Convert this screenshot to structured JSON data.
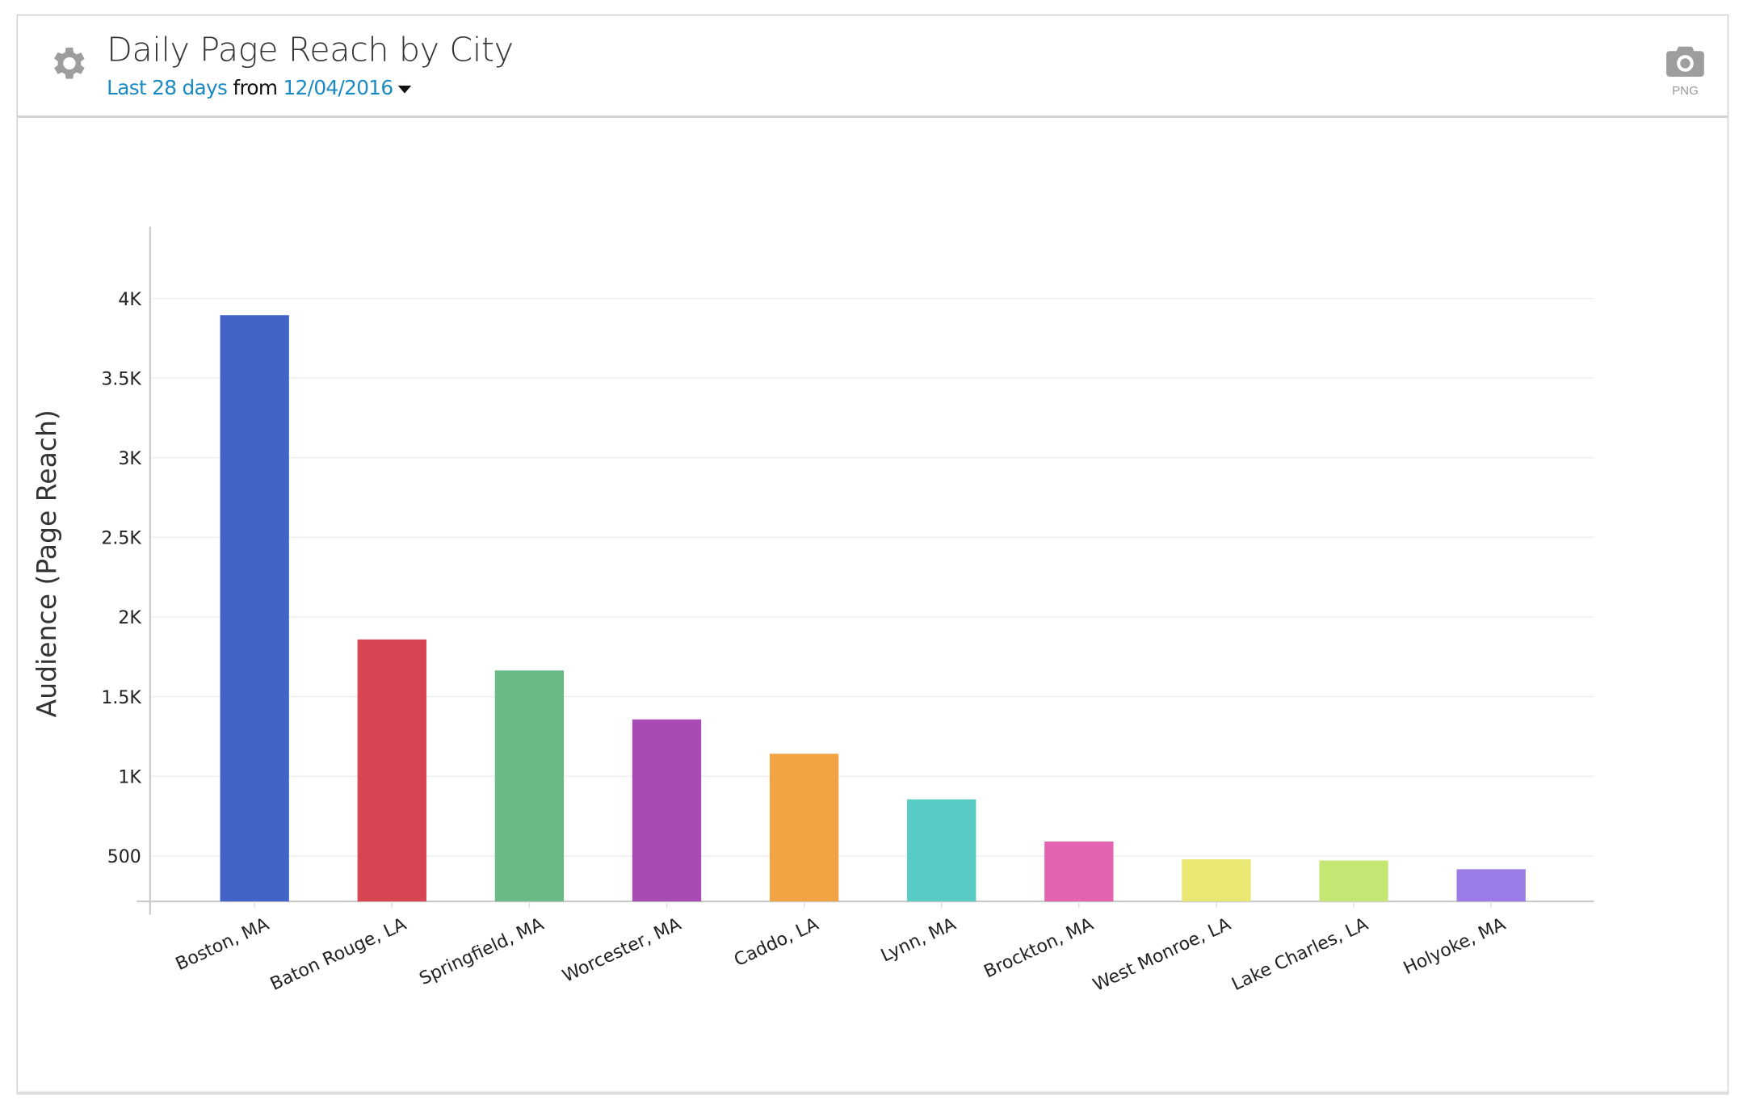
{
  "header": {
    "title": "Daily Page Reach by City",
    "range_label": "Last 28 days",
    "from_label": "from",
    "date_label": "12/04/2016",
    "export_label": "PNG"
  },
  "icons": {
    "settings": "gear-icon",
    "export": "camera-icon",
    "date_dropdown": "caret-down-icon"
  },
  "colors": {
    "link": "#1a8ac4",
    "icon": "#9e9e9e"
  },
  "chart_data": {
    "type": "bar",
    "title": "Daily Page Reach by City",
    "xlabel": "",
    "ylabel": "Audience (Page Reach)",
    "ylim": [
      214,
      4450
    ],
    "grid": true,
    "yticks": [
      500,
      1000,
      1500,
      2000,
      2500,
      3000,
      3500,
      4000
    ],
    "ytick_labels": [
      "500",
      "1K",
      "1.5K",
      "2K",
      "2.5K",
      "3K",
      "3.5K",
      "4K"
    ],
    "categories": [
      "Boston, MA",
      "Baton Rouge, LA",
      "Springfield, MA",
      "Worcester, MA",
      "Caddo, LA",
      "Lynn, MA",
      "Brockton, MA",
      "West Monroe, LA",
      "Lake Charles, LA",
      "Holyoke, MA"
    ],
    "values": [
      3895,
      1859,
      1664,
      1357,
      1141,
      855,
      590,
      478,
      471,
      416
    ],
    "bar_colors": [
      "#4264c8",
      "#d94452",
      "#6aba87",
      "#a84bb4",
      "#f2a444",
      "#58cbc4",
      "#e463ae",
      "#e8e873",
      "#c4e673",
      "#9b7be6"
    ]
  }
}
